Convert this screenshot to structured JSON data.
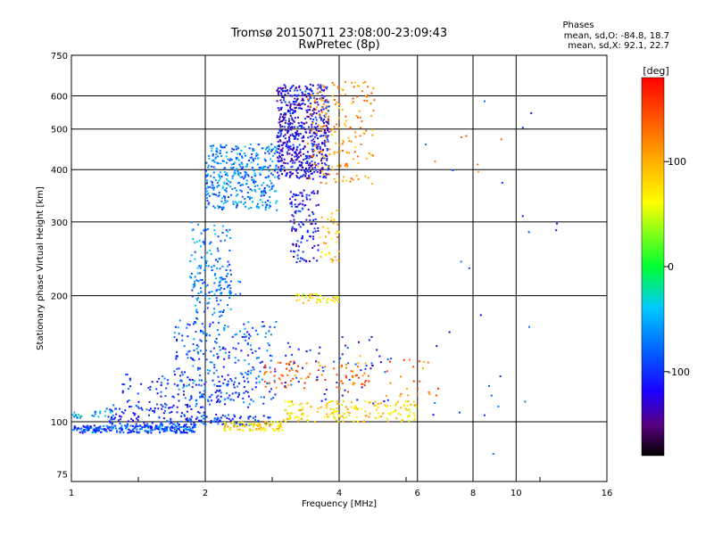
{
  "chart_data": {
    "type": "scatter",
    "title": "Tromsø 20150711 23:08:00-23:09:43",
    "subtitle": "RwPretec (8p)",
    "xlabel": "Frequency [MHz]",
    "ylabel": "Stationary phase Virtual Height [km]",
    "xscale": "log2",
    "yscale": "log",
    "xlim": [
      1,
      16
    ],
    "ylim": [
      72,
      750
    ],
    "x_ticks": [
      1,
      2,
      4,
      6,
      8,
      10,
      16
    ],
    "x_tick_labels": [
      "1",
      "2",
      "4",
      "6",
      "8",
      "10",
      "16"
    ],
    "y_ticks": [
      75,
      100,
      200,
      300,
      400,
      500,
      600,
      750
    ],
    "y_tick_labels": [
      "75",
      "100",
      "200",
      "300",
      "400",
      "500",
      "600",
      "750"
    ],
    "grid": true,
    "stats": {
      "heading": "Phases",
      "o_line": "mean, sd,O:  -84.8, 18.7",
      "x_line": "mean, sd,X:   92.1, 22.7"
    },
    "colorbar": {
      "label": "[deg]",
      "range": [
        -180,
        180
      ],
      "ticks": [
        100,
        0,
        -100
      ],
      "tick_labels": [
        "100",
        "0",
        "-100"
      ]
    },
    "colors": {
      "-180": "#000000",
      "-150": "#5a0080",
      "-120": "#1a00ff",
      "-80": "#0064ff",
      "-40": "#00c8ff",
      "0": "#00ff32",
      "60": "#ffff00",
      "110": "#ff9600",
      "180": "#ff0000"
    },
    "clusters": [
      {
        "xr": [
          1.0,
          1.9
        ],
        "yr": [
          94,
          98
        ],
        "phase": -90,
        "n": 260
      },
      {
        "xr": [
          1.0,
          1.25
        ],
        "yr": [
          102,
          106
        ],
        "phase": -50,
        "n": 30
      },
      {
        "xr": [
          1.2,
          2.0
        ],
        "yr": [
          98,
          110
        ],
        "phase": -100,
        "n": 120
      },
      {
        "xr": [
          1.3,
          2.5
        ],
        "yr": [
          108,
          130
        ],
        "phase": -100,
        "n": 90
      },
      {
        "xr": [
          1.7,
          2.9
        ],
        "yr": [
          110,
          175
        ],
        "phase": -85,
        "n": 280
      },
      {
        "xr": [
          1.8,
          2.8
        ],
        "yr": [
          98,
          104
        ],
        "phase": -95,
        "n": 80
      },
      {
        "xr": [
          2.2,
          3.0
        ],
        "yr": [
          95,
          100
        ],
        "phase": 80,
        "n": 90
      },
      {
        "xr": [
          1.85,
          2.3
        ],
        "yr": [
          200,
          300
        ],
        "phase": -70,
        "n": 120
      },
      {
        "xr": [
          1.85,
          2.4
        ],
        "yr": [
          175,
          220
        ],
        "phase": -75,
        "n": 60
      },
      {
        "xr": [
          2.0,
          2.9
        ],
        "yr": [
          320,
          460
        ],
        "phase": -70,
        "n": 380
      },
      {
        "xr": [
          2.9,
          3.8
        ],
        "yr": [
          380,
          640
        ],
        "phase": -120,
        "n": 620
      },
      {
        "xr": [
          3.1,
          3.6
        ],
        "yr": [
          240,
          360
        ],
        "phase": -115,
        "n": 120
      },
      {
        "xr": [
          3.4,
          4.8
        ],
        "yr": [
          370,
          650
        ],
        "phase": 110,
        "n": 180
      },
      {
        "xr": [
          3.6,
          4.0
        ],
        "yr": [
          240,
          320
        ],
        "phase": 90,
        "n": 40
      },
      {
        "xr": [
          3.2,
          4.0
        ],
        "yr": [
          192,
          202
        ],
        "phase": 70,
        "n": 40
      },
      {
        "xr": [
          3.0,
          6.0
        ],
        "yr": [
          100,
          112
        ],
        "phase": 80,
        "n": 170
      },
      {
        "xr": [
          2.7,
          4.6
        ],
        "yr": [
          120,
          140
        ],
        "phase": 130,
        "n": 80
      },
      {
        "xr": [
          3.0,
          5.3
        ],
        "yr": [
          110,
          160
        ],
        "phase": -110,
        "n": 60
      },
      {
        "xr": [
          4.0,
          6.8
        ],
        "yr": [
          115,
          145
        ],
        "phase": 130,
        "n": 40
      },
      {
        "xr": [
          6.2,
          12.5
        ],
        "yr": [
          80,
          600
        ],
        "phase": -100,
        "n": 26
      },
      {
        "xr": [
          6.0,
          10.0
        ],
        "yr": [
          380,
          500
        ],
        "phase": 120,
        "n": 6
      }
    ]
  }
}
